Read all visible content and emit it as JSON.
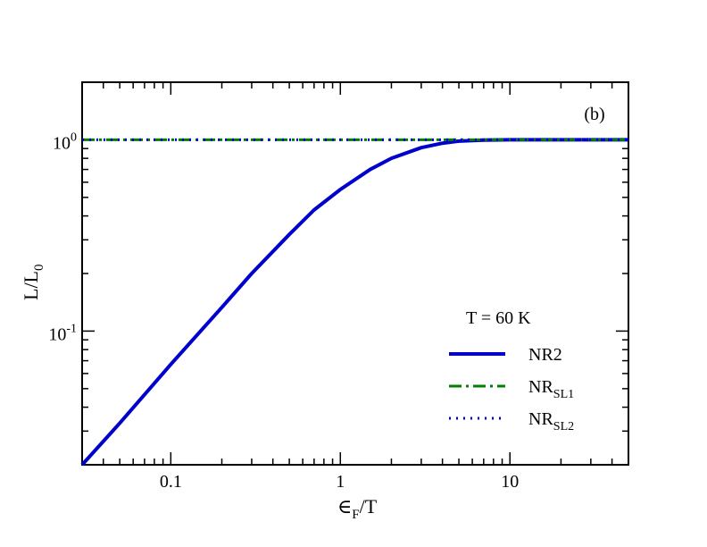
{
  "chart_data": {
    "type": "line",
    "title": "",
    "panel_label": "(b)",
    "xlabel": {
      "main": "∈",
      "sub": "F",
      "tail": "/T"
    },
    "ylabel": {
      "main": "L/L",
      "sub": "0"
    },
    "xscale": "log",
    "yscale": "log",
    "xlim": [
      0.03,
      50
    ],
    "ylim": [
      0.02,
      2
    ],
    "x_ticks": [
      {
        "value": 0.1,
        "label": "0.1"
      },
      {
        "value": 1,
        "label": "1"
      },
      {
        "value": 10,
        "label": "10"
      }
    ],
    "y_ticks": [
      {
        "value": 0.1,
        "base": "10",
        "exp": "-1"
      },
      {
        "value": 1,
        "base": "10",
        "exp": "0"
      }
    ],
    "grid": false,
    "legend": {
      "title": "T = 60 K",
      "position": "center-right",
      "entries": [
        {
          "key": "nr2",
          "main": "NR2",
          "sub": ""
        },
        {
          "key": "nrsl1",
          "main": "NR",
          "sub": "SL1"
        },
        {
          "key": "nrsl2",
          "main": "NR",
          "sub": "SL2"
        }
      ]
    },
    "series": [
      {
        "key": "nr2",
        "name": "NR2",
        "color": "#0000cc",
        "style": "solid",
        "x": [
          0.03,
          0.05,
          0.1,
          0.2,
          0.3,
          0.5,
          0.7,
          1,
          1.5,
          2,
          3,
          4,
          5,
          7,
          10,
          20,
          50
        ],
        "y": [
          0.02,
          0.033,
          0.067,
          0.133,
          0.2,
          0.32,
          0.43,
          0.55,
          0.7,
          0.8,
          0.91,
          0.96,
          0.985,
          0.997,
          1.0,
          1.0,
          1.0
        ]
      },
      {
        "key": "nrsl1",
        "name": "NR_SL1",
        "color": "#008000",
        "style": "dash-dot",
        "x": [
          0.03,
          50
        ],
        "y": [
          1.0,
          1.0
        ]
      },
      {
        "key": "nrsl2",
        "name": "NR_SL2",
        "color": "#0000cc",
        "style": "dotted",
        "x": [
          0.03,
          50
        ],
        "y": [
          1.0,
          1.0
        ]
      }
    ]
  }
}
